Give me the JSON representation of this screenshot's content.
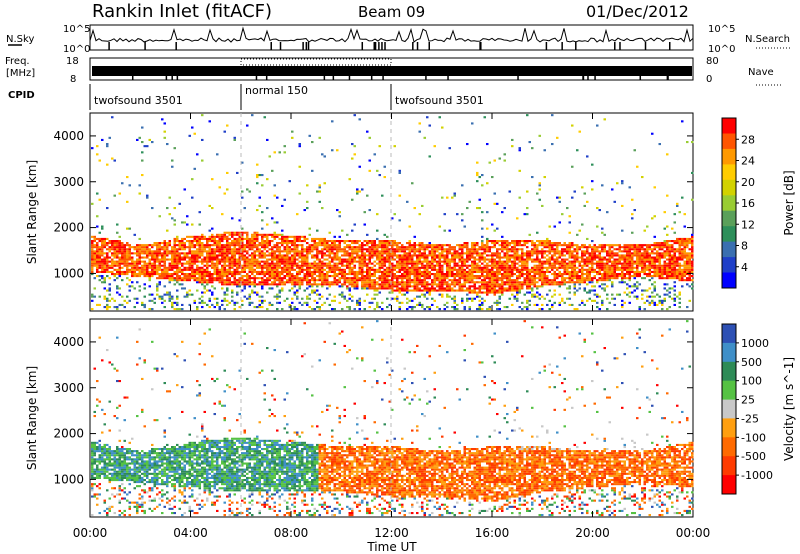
{
  "header": {
    "station": "Rankin Inlet (fitACF)",
    "beam": "Beam 09",
    "date": "01/Dec/2012"
  },
  "summary": {
    "nsky_label": "N.Sky",
    "nsearch_label": "N.Search",
    "freq_label_1": "Freq.",
    "freq_label_2": "[MHz]",
    "nave_label": "Nave",
    "cpid_label": "CPID",
    "noise_tick_top": "10^5",
    "noise_tick_bottom": "10^0",
    "noise_tick_top_right": "10^5",
    "noise_tick_bottom_right": "10^0",
    "freq_tick_top": "18",
    "freq_tick_bottom": "8",
    "nave_tick_top": "80",
    "nave_tick_bottom": "0",
    "cpid_segments": [
      {
        "label": "twofsound 3501",
        "start_h": 0,
        "end_h": 6
      },
      {
        "label": "normal 150",
        "start_h": 6,
        "end_h": 12
      },
      {
        "label": "twofsound 3501",
        "start_h": 12,
        "end_h": 24
      }
    ]
  },
  "chart_data": [
    {
      "type": "heatmap",
      "name": "power",
      "xlabel": "",
      "ylabel": "Slant Range [km]",
      "xlim": [
        0,
        24
      ],
      "ylim": [
        180,
        4500
      ],
      "yticks": [
        1000,
        2000,
        3000,
        4000
      ],
      "colorbar_label": "Power [dB]",
      "colorbar_ticks": [
        "28",
        "24",
        "20",
        "16",
        "12",
        "8",
        "4"
      ],
      "colorbar_colors": [
        "#ff0000",
        "#ff5500",
        "#ff9900",
        "#ffcc00",
        "#d2d200",
        "#99cc33",
        "#5aa05a",
        "#2d8f5a",
        "#3a6fb0",
        "#1f3fc8",
        "#0000ff"
      ],
      "series": [
        {
          "band": "main",
          "time_h": [
            0,
            2,
            4,
            6,
            8,
            10,
            12,
            14,
            16,
            18,
            20,
            22,
            24
          ],
          "range_km_low": [
            1000,
            900,
            800,
            700,
            700,
            700,
            600,
            600,
            500,
            700,
            800,
            900,
            800
          ],
          "range_km_high": [
            1800,
            1600,
            1800,
            1900,
            1800,
            1700,
            1700,
            1600,
            1700,
            1700,
            1600,
            1600,
            1800
          ]
        }
      ]
    },
    {
      "type": "heatmap",
      "name": "velocity",
      "xlabel": "Time UT",
      "ylabel": "Slant Range [km]",
      "xlim": [
        0,
        24
      ],
      "ylim": [
        180,
        4500
      ],
      "yticks": [
        1000,
        2000,
        3000,
        4000
      ],
      "xticks": [
        "00:00",
        "04:00",
        "08:00",
        "12:00",
        "16:00",
        "20:00",
        "00:00"
      ],
      "colorbar_label": "Velocity [m s^-1]",
      "colorbar_ticks": [
        "1000",
        "500",
        "100",
        "25",
        "-25",
        "-100",
        "-500",
        "-1000"
      ],
      "colorbar_colors": [
        "#2d50b4",
        "#3f8fc8",
        "#2e8b57",
        "#55c243",
        "#c8c8c8",
        "#ff9f10",
        "#ff6a00",
        "#ff3b00",
        "#ff0000"
      ],
      "series": [
        {
          "band": "main",
          "time_h": [
            0,
            2,
            4,
            6,
            8,
            10,
            12,
            14,
            16,
            18,
            20,
            22,
            24
          ],
          "range_km_low": [
            1000,
            900,
            800,
            700,
            700,
            700,
            600,
            600,
            500,
            700,
            800,
            900,
            800
          ],
          "range_km_high": [
            1800,
            1600,
            1800,
            1900,
            1800,
            1700,
            1700,
            1600,
            1700,
            1700,
            1600,
            1600,
            1800
          ]
        }
      ]
    }
  ]
}
